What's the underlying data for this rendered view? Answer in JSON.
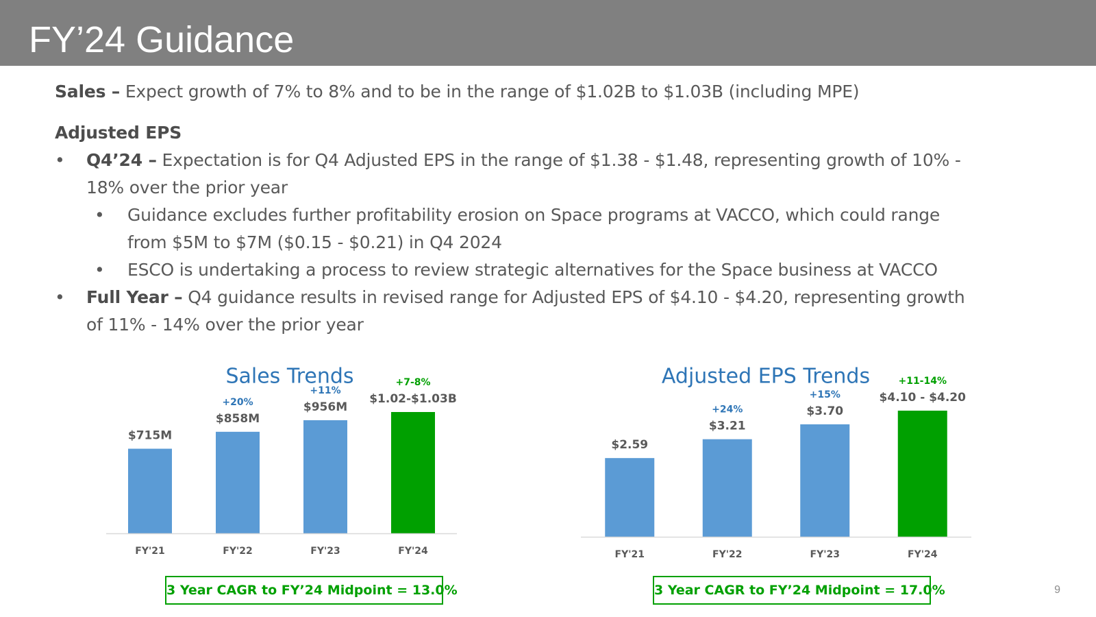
{
  "page": {
    "title": "FY’24 Guidance",
    "page_number": "9"
  },
  "body": {
    "sales_label": "Sales –",
    "sales_text": " Expect growth of 7% to 8% and to be in the range of $1.02B to $1.03B (including MPE)",
    "eps_heading": "Adjusted EPS",
    "bullet_char": "•",
    "q4_label": "Q4’24 –",
    "q4_text_1": " Expectation is for Q4 Adjusted EPS in the range of $1.38 - $1.48, representing growth of 10% -",
    "q4_text_2": "18% over the prior year",
    "sub1_line1": "Guidance excludes further profitability erosion on Space programs at VACCO, which could range",
    "sub1_line2": "from $5M to $7M ($0.15 - $0.21) in Q4 2024",
    "sub2": "ESCO is undertaking a process to review strategic alternatives for the Space business at VACCO",
    "fy_label": "Full Year –",
    "fy_text_1": " Q4 guidance results in revised range for Adjusted EPS of $4.10 - $4.20, representing growth",
    "fy_text_2": "of 11% - 14% over the prior year"
  },
  "chart_data": [
    {
      "type": "bar",
      "title": "Sales Trends",
      "categories": [
        "FY'21",
        "FY'22",
        "FY'23",
        "FY'24"
      ],
      "values": [
        715,
        858,
        956,
        1025
      ],
      "unit": "$M",
      "value_labels": [
        "$715M",
        "$858M",
        "$956M",
        "$1.02-$1.03B"
      ],
      "growth_labels": [
        "",
        "+20%",
        "+11%",
        "+7-8%"
      ],
      "bar_colors": [
        "#5b9bd5",
        "#5b9bd5",
        "#5b9bd5",
        "#00a000"
      ],
      "ylim": [
        0,
        1100
      ],
      "grid": false,
      "footnote": "3 Year CAGR to FY’24 Midpoint = 13.0%"
    },
    {
      "type": "bar",
      "title": "Adjusted EPS Trends",
      "categories": [
        "FY'21",
        "FY'22",
        "FY'23",
        "FY'24"
      ],
      "values": [
        2.59,
        3.21,
        3.7,
        4.15
      ],
      "unit": "$",
      "value_labels": [
        "$2.59",
        "$3.21",
        "$3.70",
        "$4.10 - $4.20"
      ],
      "growth_labels": [
        "",
        "+24%",
        "+15%",
        "+11-14%"
      ],
      "bar_colors": [
        "#5b9bd5",
        "#5b9bd5",
        "#5b9bd5",
        "#00a000"
      ],
      "ylim": [
        0,
        4.5
      ],
      "grid": false,
      "footnote": "3 Year CAGR to FY’24 Midpoint = 17.0%"
    }
  ]
}
